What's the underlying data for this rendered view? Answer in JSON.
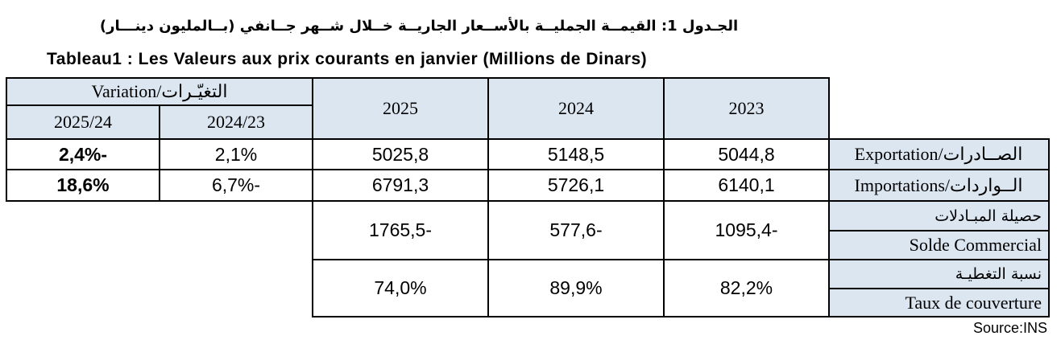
{
  "title_ar": "الجـدول 1: القيمــة الجمليــة بالأســعار الجاريــة خــلال شــهر جــانفي (بــالمليون دينـــار)",
  "title_fr": "Tableau1 : Les Valeurs aux prix courants en janvier (Millions de Dinars)",
  "header": {
    "variation": "Variation/التغيّـرات",
    "var_2025_24": "2025/24",
    "var_2024_23": "2024/23",
    "y2025": "2025",
    "y2024": "2024",
    "y2023": "2023"
  },
  "rows": {
    "exportation": {
      "label": "Exportation/الصــادرات",
      "var_2025_24": "2,4%-",
      "var_2024_23": "2,1%",
      "y2025": "5025,8",
      "y2024": "5148,5",
      "y2023": "5044,8"
    },
    "importations": {
      "label": "Importations/الــواردات",
      "var_2025_24": "18,6%",
      "var_2024_23": "6,7%-",
      "y2025": "6791,3",
      "y2024": "5726,1",
      "y2023": "6140,1"
    },
    "solde": {
      "label_ar": "حصيلة المبـادلات",
      "label_fr": "Solde Commercial",
      "y2025": "1765,5-",
      "y2024": "577,6-",
      "y2023": "1095,4-"
    },
    "taux": {
      "label_ar": "نسبة التغطيـة",
      "label_fr": "Taux de couverture",
      "y2025": "74,0%",
      "y2024": "89,9%",
      "y2023": "82,2%"
    }
  },
  "source": "Source:INS"
}
